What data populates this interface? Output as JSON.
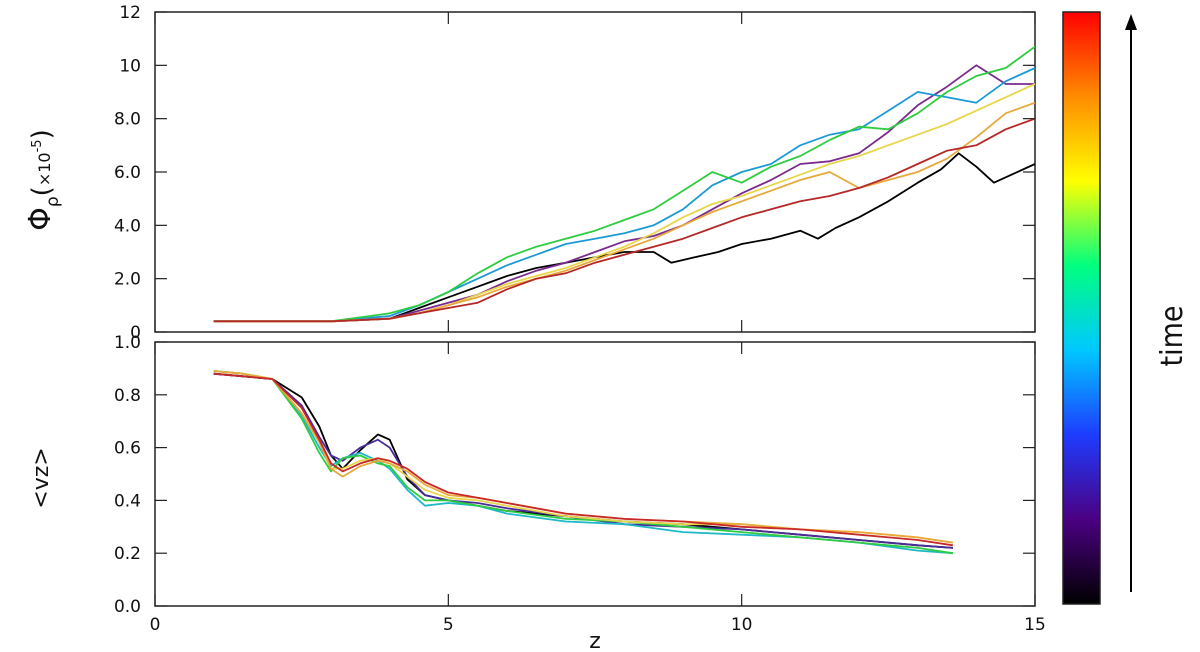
{
  "chart_data": [
    {
      "type": "line",
      "panel": "top",
      "ylabel": "Φρ(×10⁻⁵)",
      "ylabel_main": "Φ",
      "ylabel_sub": "ρ",
      "ylabel_paren": "(",
      "ylabel_scale": "×10",
      "ylabel_exp": "-5",
      "ylabel_paren_close": ")",
      "xlim": [
        0,
        15
      ],
      "ylim": [
        0,
        12
      ],
      "yticks": [
        0,
        2,
        4,
        6,
        8,
        10,
        12
      ],
      "ytick_labels": [
        "0",
        "2.0",
        "4.0",
        "6.0",
        "8.0",
        "10",
        "12"
      ],
      "xticks": [
        0,
        5,
        10,
        15
      ],
      "series": [
        {
          "color": "#000000",
          "x": [
            1,
            2,
            3,
            4,
            4.5,
            5,
            5.5,
            6,
            6.5,
            7,
            7.5,
            8,
            8.5,
            8.8,
            9.2,
            9.6,
            10,
            10.5,
            11,
            11.3,
            11.6,
            12,
            12.5,
            13,
            13.4,
            13.7,
            14,
            14.3,
            14.6,
            15
          ],
          "y": [
            0.4,
            0.4,
            0.4,
            0.5,
            0.9,
            1.3,
            1.7,
            2.1,
            2.4,
            2.6,
            2.8,
            3.0,
            3.0,
            2.6,
            2.8,
            3.0,
            3.3,
            3.5,
            3.8,
            3.5,
            3.9,
            4.3,
            4.9,
            5.6,
            6.1,
            6.7,
            6.2,
            5.6,
            5.9,
            6.3
          ]
        },
        {
          "color": "#7a2a8f",
          "x": [
            1,
            2,
            3,
            4,
            4.5,
            5,
            5.5,
            6,
            6.5,
            7,
            7.5,
            8,
            8.5,
            9,
            9.5,
            10,
            10.5,
            11,
            11.5,
            12,
            12.5,
            13,
            13.5,
            14,
            14.5,
            15
          ],
          "y": [
            0.4,
            0.4,
            0.4,
            0.5,
            0.8,
            1.1,
            1.4,
            1.9,
            2.3,
            2.6,
            3.0,
            3.4,
            3.6,
            4.0,
            4.6,
            5.2,
            5.7,
            6.3,
            6.4,
            6.7,
            7.5,
            8.5,
            9.2,
            10.0,
            9.3,
            9.3
          ]
        },
        {
          "color": "#1c9ad6",
          "x": [
            1,
            2,
            3,
            4,
            4.5,
            5,
            5.5,
            6,
            6.5,
            7,
            7.5,
            8,
            8.5,
            9,
            9.5,
            10,
            10.5,
            11,
            11.5,
            12,
            12.5,
            13,
            13.5,
            14,
            14.5,
            15
          ],
          "y": [
            0.4,
            0.4,
            0.4,
            0.6,
            1.0,
            1.5,
            2.0,
            2.5,
            2.9,
            3.3,
            3.5,
            3.7,
            4.0,
            4.6,
            5.5,
            6.0,
            6.3,
            7.0,
            7.4,
            7.6,
            8.3,
            9.0,
            8.8,
            8.6,
            9.4,
            9.9
          ]
        },
        {
          "color": "#2ecc40",
          "x": [
            1,
            2,
            3,
            4,
            4.5,
            5,
            5.5,
            6,
            6.5,
            7,
            7.5,
            8,
            8.5,
            9,
            9.5,
            10,
            10.5,
            11,
            11.5,
            12,
            12.5,
            13,
            13.5,
            14,
            14.5,
            15
          ],
          "y": [
            0.4,
            0.4,
            0.4,
            0.7,
            1.0,
            1.5,
            2.2,
            2.8,
            3.2,
            3.5,
            3.8,
            4.2,
            4.6,
            5.3,
            6.0,
            5.6,
            6.2,
            6.6,
            7.2,
            7.7,
            7.6,
            8.2,
            9.0,
            9.6,
            9.9,
            10.7
          ]
        },
        {
          "color": "#e8d64a",
          "x": [
            1,
            2,
            3,
            4,
            4.5,
            5,
            5.5,
            6,
            6.5,
            7,
            7.5,
            8,
            8.5,
            9,
            9.5,
            10,
            10.5,
            11,
            11.5,
            12,
            12.5,
            13,
            13.5,
            14,
            14.5,
            15
          ],
          "y": [
            0.4,
            0.4,
            0.4,
            0.5,
            0.7,
            1.0,
            1.4,
            1.8,
            2.1,
            2.4,
            2.8,
            3.2,
            3.7,
            4.3,
            4.8,
            5.1,
            5.5,
            5.9,
            6.3,
            6.6,
            7.0,
            7.4,
            7.8,
            8.3,
            8.8,
            9.3
          ]
        },
        {
          "color": "#e8a83a",
          "x": [
            1,
            2,
            3,
            4,
            4.5,
            5,
            5.5,
            6,
            6.5,
            7,
            7.5,
            8,
            8.5,
            9,
            9.5,
            10,
            10.5,
            11,
            11.5,
            12,
            12.5,
            13,
            13.5,
            14,
            14.5,
            15
          ],
          "y": [
            0.4,
            0.4,
            0.4,
            0.5,
            0.7,
            1.0,
            1.3,
            1.7,
            2.0,
            2.3,
            2.7,
            3.1,
            3.5,
            4.0,
            4.5,
            4.9,
            5.3,
            5.7,
            6.0,
            5.4,
            5.7,
            6.0,
            6.5,
            7.3,
            8.2,
            8.6
          ]
        },
        {
          "color": "#b42828",
          "x": [
            1,
            2,
            3,
            4,
            4.5,
            5,
            5.5,
            6,
            6.5,
            7,
            7.5,
            8,
            8.5,
            9,
            9.5,
            10,
            10.5,
            11,
            11.5,
            12,
            12.5,
            13,
            13.5,
            14,
            14.5,
            15
          ],
          "y": [
            0.4,
            0.4,
            0.4,
            0.5,
            0.7,
            0.9,
            1.1,
            1.6,
            2.0,
            2.2,
            2.6,
            2.9,
            3.2,
            3.5,
            3.9,
            4.3,
            4.6,
            4.9,
            5.1,
            5.4,
            5.8,
            6.3,
            6.8,
            7.0,
            7.6,
            8.0
          ]
        }
      ]
    },
    {
      "type": "line",
      "panel": "bottom",
      "xlabel": "z",
      "ylabel": "<vz>",
      "xlim": [
        0,
        15
      ],
      "ylim": [
        0,
        1.0
      ],
      "yticks": [
        0,
        0.2,
        0.4,
        0.6,
        0.8,
        1.0
      ],
      "ytick_labels": [
        "0.0",
        "0.2",
        "0.4",
        "0.6",
        "0.8",
        "1.0"
      ],
      "xticks": [
        0,
        5,
        10,
        15
      ],
      "xtick_labels": [
        "0",
        "5",
        "10",
        "15"
      ],
      "series": [
        {
          "color": "#000000",
          "x": [
            1,
            1.5,
            2,
            2.5,
            2.8,
            3.0,
            3.2,
            3.5,
            3.8,
            4.0,
            4.3,
            4.6,
            5,
            5.5,
            6,
            7,
            8,
            9,
            10,
            11,
            12,
            13,
            13.6
          ],
          "y": [
            0.88,
            0.87,
            0.86,
            0.79,
            0.68,
            0.57,
            0.52,
            0.59,
            0.65,
            0.63,
            0.48,
            0.42,
            0.4,
            0.38,
            0.36,
            0.34,
            0.32,
            0.31,
            0.29,
            0.27,
            0.25,
            0.23,
            0.22
          ]
        },
        {
          "color": "#4b2d9a",
          "x": [
            1,
            1.5,
            2,
            2.5,
            2.8,
            3.0,
            3.2,
            3.5,
            3.8,
            4.0,
            4.3,
            4.6,
            5,
            5.5,
            6,
            7,
            8,
            9,
            10,
            11,
            12,
            13,
            13.6
          ],
          "y": [
            0.88,
            0.87,
            0.86,
            0.76,
            0.64,
            0.57,
            0.55,
            0.6,
            0.63,
            0.6,
            0.49,
            0.42,
            0.4,
            0.39,
            0.37,
            0.34,
            0.31,
            0.3,
            0.29,
            0.27,
            0.25,
            0.23,
            0.22
          ]
        },
        {
          "color": "#1fb8c8",
          "x": [
            1,
            1.5,
            2,
            2.5,
            2.8,
            3.0,
            3.2,
            3.5,
            3.8,
            4.0,
            4.3,
            4.6,
            5,
            5.5,
            6,
            7,
            8,
            9,
            10,
            11,
            12,
            13,
            13.6
          ],
          "y": [
            0.89,
            0.88,
            0.86,
            0.72,
            0.6,
            0.53,
            0.56,
            0.58,
            0.55,
            0.52,
            0.44,
            0.38,
            0.39,
            0.38,
            0.35,
            0.32,
            0.31,
            0.28,
            0.27,
            0.26,
            0.24,
            0.21,
            0.2
          ]
        },
        {
          "color": "#2ecc40",
          "x": [
            1,
            1.5,
            2,
            2.5,
            2.8,
            3.0,
            3.2,
            3.5,
            3.8,
            4.0,
            4.3,
            4.6,
            5,
            5.5,
            6,
            7,
            8,
            9,
            10,
            11,
            12,
            13,
            13.6
          ],
          "y": [
            0.89,
            0.88,
            0.86,
            0.71,
            0.58,
            0.51,
            0.56,
            0.57,
            0.54,
            0.53,
            0.45,
            0.4,
            0.4,
            0.38,
            0.36,
            0.33,
            0.32,
            0.3,
            0.28,
            0.26,
            0.24,
            0.22,
            0.2
          ]
        },
        {
          "color": "#e8d64a",
          "x": [
            1,
            1.5,
            2,
            2.5,
            2.8,
            3.0,
            3.2,
            3.5,
            3.8,
            4.0,
            4.3,
            4.6,
            5,
            5.5,
            6,
            7,
            8,
            9,
            10,
            11,
            12,
            13,
            13.6
          ],
          "y": [
            0.89,
            0.88,
            0.86,
            0.73,
            0.62,
            0.52,
            0.52,
            0.55,
            0.56,
            0.54,
            0.49,
            0.44,
            0.41,
            0.4,
            0.38,
            0.34,
            0.32,
            0.31,
            0.31,
            0.29,
            0.28,
            0.26,
            0.24
          ]
        },
        {
          "color": "#e8a83a",
          "x": [
            1,
            1.5,
            2,
            2.5,
            2.8,
            3.0,
            3.2,
            3.5,
            3.8,
            4.0,
            4.3,
            4.6,
            5,
            5.5,
            6,
            7,
            8,
            9,
            10,
            11,
            12,
            13,
            13.6
          ],
          "y": [
            0.89,
            0.88,
            0.86,
            0.73,
            0.62,
            0.52,
            0.49,
            0.53,
            0.55,
            0.54,
            0.51,
            0.46,
            0.42,
            0.41,
            0.39,
            0.35,
            0.33,
            0.32,
            0.31,
            0.29,
            0.28,
            0.26,
            0.24
          ]
        },
        {
          "color": "#c82828",
          "x": [
            1,
            1.5,
            2,
            2.5,
            2.8,
            3.0,
            3.2,
            3.5,
            3.8,
            4.0,
            4.3,
            4.6,
            5,
            5.5,
            6,
            7,
            8,
            9,
            10,
            11,
            12,
            13,
            13.6
          ],
          "y": [
            0.88,
            0.87,
            0.86,
            0.75,
            0.63,
            0.54,
            0.51,
            0.54,
            0.56,
            0.55,
            0.52,
            0.47,
            0.43,
            0.41,
            0.39,
            0.35,
            0.33,
            0.32,
            0.3,
            0.29,
            0.27,
            0.25,
            0.23
          ]
        }
      ]
    }
  ],
  "colorbar": {
    "label": "time",
    "colors": [
      "#000000",
      "#4b0082",
      "#1e3cff",
      "#00c8ff",
      "#00ff80",
      "#ffff00",
      "#ff8c00",
      "#ff0000"
    ]
  }
}
